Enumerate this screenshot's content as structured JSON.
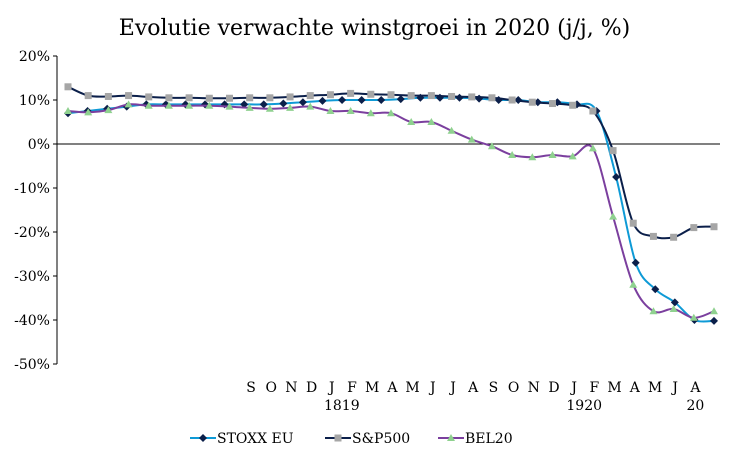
{
  "chart_data": {
    "type": "line",
    "title": "Evolutie verwachte winstgroei in 2020 (j/j, %)",
    "xlabel": "",
    "ylabel": "",
    "ylim": [
      -50,
      20
    ],
    "y_ticks": [
      "20%",
      "10%",
      "0%",
      "-10%",
      "-20%",
      "-30%",
      "-40%",
      "-50%"
    ],
    "y_tick_values": [
      20,
      10,
      0,
      -10,
      -20,
      -30,
      -40,
      -50
    ],
    "x_month_labels": [
      "S",
      "O",
      "N",
      "D",
      "J",
      "F",
      "M",
      "A",
      "M",
      "J",
      "J",
      "A",
      "S",
      "O",
      "N",
      "D",
      "J",
      "F",
      "M",
      "A",
      "M",
      "J",
      "A"
    ],
    "x_year_labels": [
      {
        "text": "1819",
        "month_index": 4
      },
      {
        "text": "1920",
        "month_index": 16
      },
      {
        "text": "20",
        "month_index": 22
      }
    ],
    "legend_position": "bottom",
    "grid": false,
    "series": [
      {
        "name": "STOXX EU",
        "color": "#0e9ad6",
        "marker_color": "#0b1f4a",
        "marker": "diamond",
        "values": [
          7,
          7.5,
          8,
          8.5,
          9,
          9,
          9,
          9,
          9,
          9,
          9,
          9.2,
          9.5,
          9.8,
          10,
          10,
          10,
          10.2,
          10.5,
          10.5,
          10.5,
          10.3,
          10,
          10,
          9.5,
          9.5,
          9,
          7.5,
          -7.5,
          -27,
          -33,
          -36,
          -40,
          -40.2
        ]
      },
      {
        "name": "S&P500",
        "color": "#0b1f4a",
        "marker_color": "#a6a6a6",
        "marker": "square",
        "values": [
          13,
          11,
          10.8,
          11,
          10.7,
          10.5,
          10.5,
          10.4,
          10.4,
          10.5,
          10.5,
          10.7,
          11,
          11.2,
          11.5,
          11.3,
          11.2,
          11,
          11,
          10.8,
          10.7,
          10.5,
          10,
          9.5,
          9.2,
          8.8,
          7.5,
          -1.5,
          -18,
          -21,
          -21.2,
          -19,
          -18.8
        ]
      },
      {
        "name": "BEL20",
        "color": "#7b3f9e",
        "marker_color": "#8fd18f",
        "marker": "triangle",
        "values": [
          7.5,
          7.2,
          7.7,
          9,
          8.7,
          8.7,
          8.7,
          8.7,
          8.5,
          8.2,
          8,
          8.2,
          8.5,
          7.5,
          7.5,
          7,
          7,
          5,
          5,
          3,
          1,
          -0.5,
          -2.5,
          -3,
          -2.5,
          -2.8,
          -1,
          -16.5,
          -32,
          -38,
          -37.5,
          -39.5,
          -38
        ]
      }
    ]
  }
}
